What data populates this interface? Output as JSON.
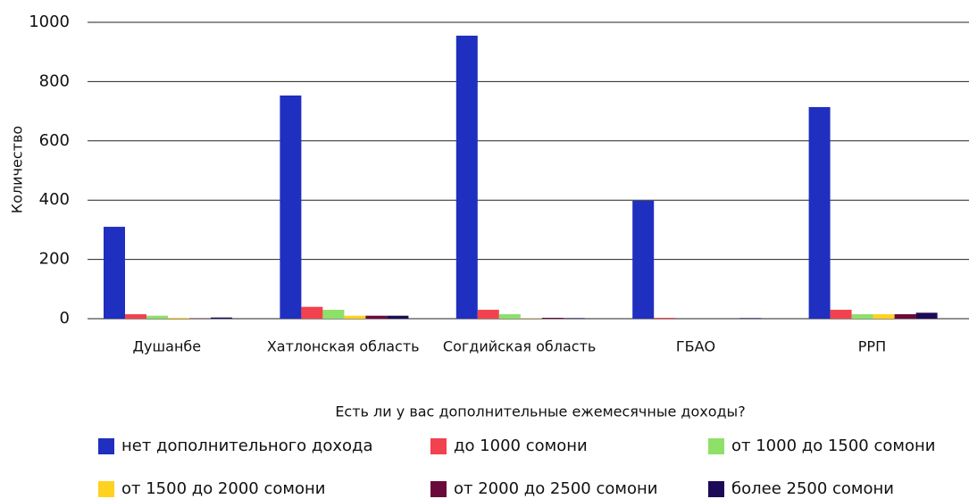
{
  "chart_data": {
    "type": "bar",
    "y_label": "Количество",
    "x_label": "Есть ли у вас дополнительные ежемесячные доходы?",
    "categories": [
      "Душанбе",
      "Хатлонская область",
      "Согдийская область",
      "ГБАО",
      "РРП"
    ],
    "series": [
      {
        "name": "нет дополнительного дохода",
        "color": "#1f2fbf",
        "values": [
          310,
          753,
          955,
          398,
          714
        ]
      },
      {
        "name": "до 1000 сомони",
        "color": "#f2424f",
        "values": [
          15,
          40,
          30,
          3,
          30
        ]
      },
      {
        "name": "от 1000 до 1500 сомони",
        "color": "#8ee068",
        "values": [
          10,
          30,
          15,
          0,
          15
        ]
      },
      {
        "name": "от 1500 до 2000 сомони",
        "color": "#ffd21f",
        "values": [
          3,
          10,
          1,
          0,
          15
        ]
      },
      {
        "name": "от 2000 до 2500 сомони",
        "color": "#6b0a3a",
        "values": [
          1,
          10,
          3,
          0,
          15
        ]
      },
      {
        "name": "более 2500 сомони",
        "color": "#1d0a56",
        "values": [
          4,
          10,
          2,
          2,
          20
        ]
      }
    ],
    "ylim": [
      0,
      1000
    ],
    "yticks": [
      0,
      200,
      400,
      600,
      800,
      1000
    ],
    "grid": true
  }
}
